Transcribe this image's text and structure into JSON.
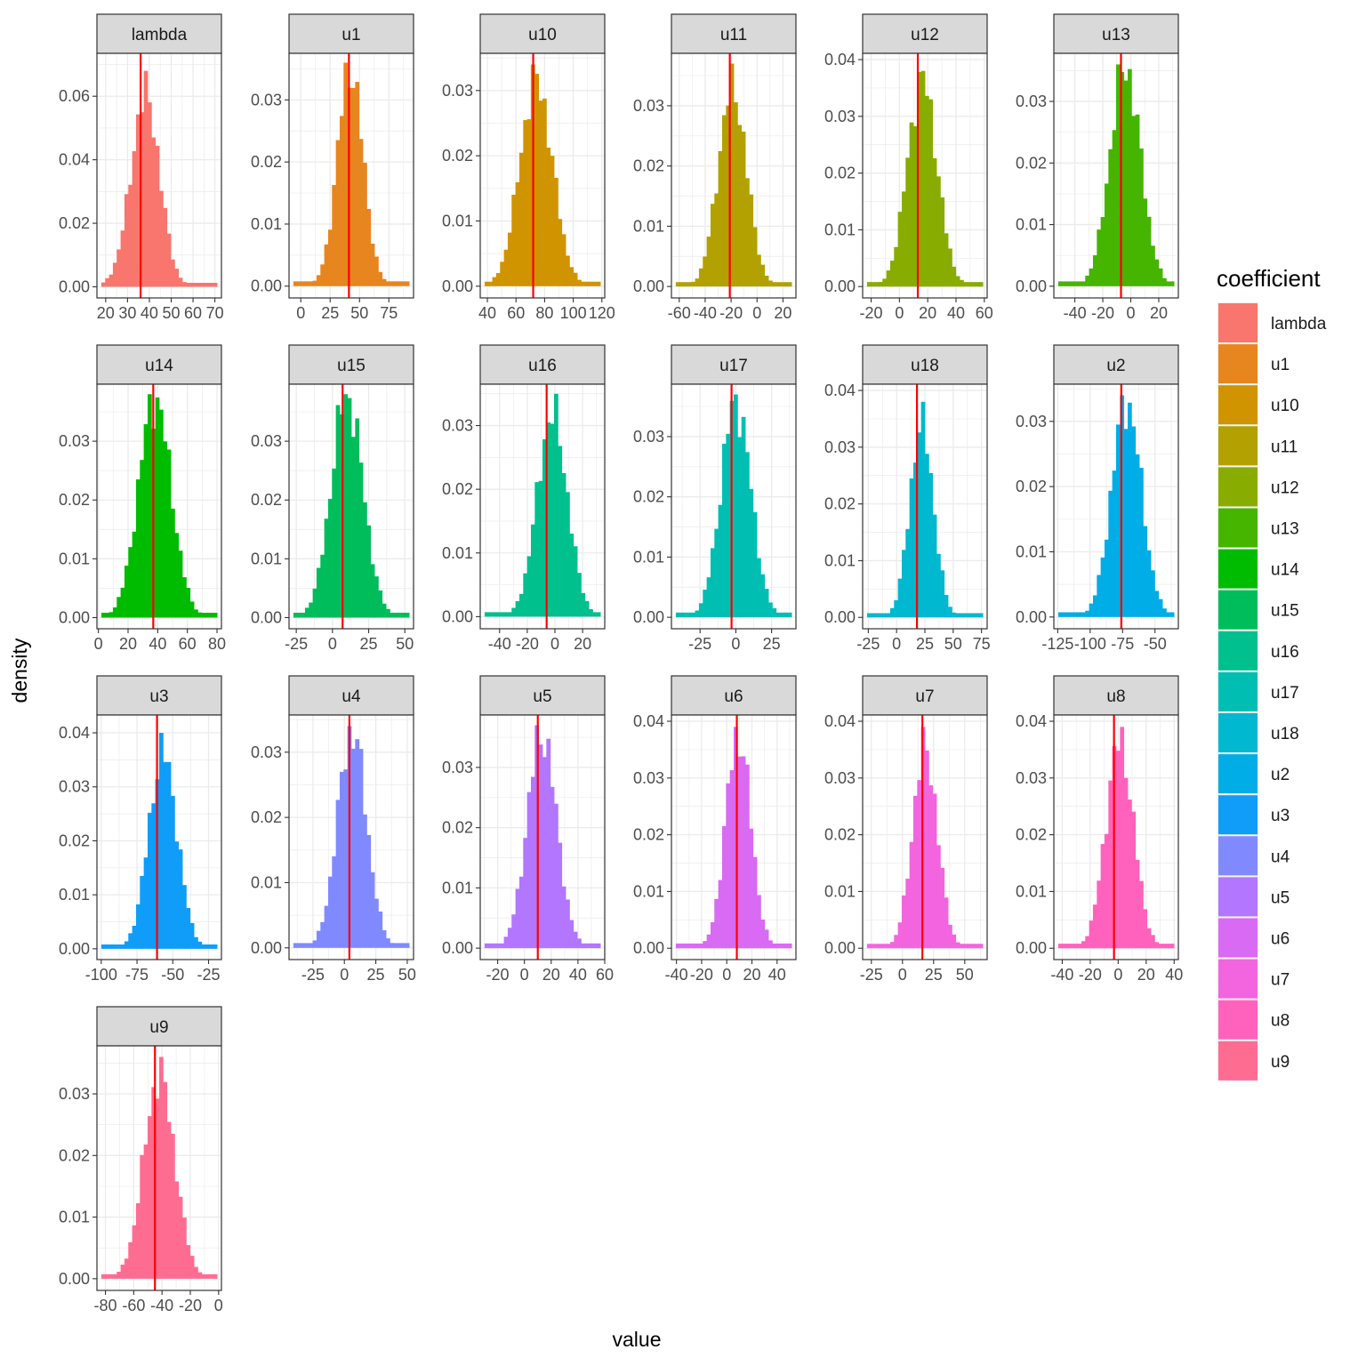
{
  "chart_data": {
    "type": "histogram-facets",
    "x_label": "value",
    "y_label": "density",
    "grid": true,
    "legend": {
      "title": "coefficient",
      "placement": "right",
      "entries": [
        "lambda",
        "u1",
        "u10",
        "u11",
        "u12",
        "u13",
        "u14",
        "u15",
        "u16",
        "u17",
        "u18",
        "u2",
        "u3",
        "u4",
        "u5",
        "u6",
        "u7",
        "u8",
        "u9"
      ]
    },
    "reference_line_color": "#ff0000",
    "facets": [
      {
        "name": "lambda",
        "color": "#F8766D",
        "xlim": [
          16,
          73
        ],
        "ylim": [
          -0.0035,
          0.0735
        ],
        "x_ticks": [
          {
            "v": 20,
            "t": "20"
          },
          {
            "v": 30,
            "t": "30"
          },
          {
            "v": 40,
            "t": "40"
          },
          {
            "v": 50,
            "t": "50"
          },
          {
            "v": 60,
            "t": "60"
          },
          {
            "v": 70,
            "t": "70"
          }
        ],
        "y_ticks": [
          {
            "v": 0,
            "t": "0.00"
          },
          {
            "v": 0.02,
            "t": "0.02"
          },
          {
            "v": 0.04,
            "t": "0.04"
          },
          {
            "v": 0.06,
            "t": "0.06"
          }
        ],
        "mean": 36,
        "sd": 7,
        "skew": 1.2,
        "peak": 0.068,
        "ref": 36
      },
      {
        "name": "u1",
        "color": "#E7851E",
        "xlim": [
          -10,
          96
        ],
        "ylim": [
          -0.0019,
          0.0375
        ],
        "x_ticks": [
          {
            "v": 0,
            "t": "0"
          },
          {
            "v": 25,
            "t": "25"
          },
          {
            "v": 50,
            "t": "50"
          },
          {
            "v": 75,
            "t": "75"
          }
        ],
        "y_ticks": [
          {
            "v": 0,
            "t": "0.00"
          },
          {
            "v": 0.01,
            "t": "0.01"
          },
          {
            "v": 0.02,
            "t": "0.02"
          },
          {
            "v": 0.03,
            "t": "0.03"
          }
        ],
        "mean": 42,
        "sd": 11,
        "skew": 0,
        "peak": 0.036,
        "ref": 41
      },
      {
        "name": "u10",
        "color": "#D09400",
        "xlim": [
          35,
          122
        ],
        "ylim": [
          -0.0018,
          0.0357
        ],
        "x_ticks": [
          {
            "v": 40,
            "t": "40"
          },
          {
            "v": 60,
            "t": "60"
          },
          {
            "v": 80,
            "t": "80"
          },
          {
            "v": 100,
            "t": "100"
          },
          {
            "v": 120,
            "t": "120"
          }
        ],
        "y_ticks": [
          {
            "v": 0,
            "t": "0.00"
          },
          {
            "v": 0.01,
            "t": "0.01"
          },
          {
            "v": 0.02,
            "t": "0.02"
          },
          {
            "v": 0.03,
            "t": "0.03"
          }
        ],
        "mean": 74,
        "sd": 11.5,
        "skew": 0,
        "peak": 0.034,
        "ref": 72
      },
      {
        "name": "u11",
        "color": "#B2A100",
        "xlim": [
          -66,
          30
        ],
        "ylim": [
          -0.0019,
          0.0387
        ],
        "x_ticks": [
          {
            "v": -60,
            "t": "-60"
          },
          {
            "v": -40,
            "t": "-40"
          },
          {
            "v": -20,
            "t": "-20"
          },
          {
            "v": 0,
            "t": "0"
          },
          {
            "v": 20,
            "t": "20"
          }
        ],
        "y_ticks": [
          {
            "v": 0,
            "t": "0.00"
          },
          {
            "v": 0.01,
            "t": "0.01"
          },
          {
            "v": 0.02,
            "t": "0.02"
          },
          {
            "v": 0.03,
            "t": "0.03"
          }
        ],
        "mean": -19,
        "sd": 11,
        "skew": 0,
        "peak": 0.037,
        "ref": -21
      },
      {
        "name": "u12",
        "color": "#89AC00",
        "xlim": [
          -26,
          62
        ],
        "ylim": [
          -0.002,
          0.0411
        ],
        "x_ticks": [
          {
            "v": -20,
            "t": "-20"
          },
          {
            "v": 0,
            "t": "0"
          },
          {
            "v": 20,
            "t": "20"
          },
          {
            "v": 40,
            "t": "40"
          },
          {
            "v": 60,
            "t": "60"
          }
        ],
        "y_ticks": [
          {
            "v": 0,
            "t": "0.00"
          },
          {
            "v": 0.01,
            "t": "0.01"
          },
          {
            "v": 0.02,
            "t": "0.02"
          },
          {
            "v": 0.03,
            "t": "0.03"
          },
          {
            "v": 0.04,
            "t": "0.04"
          }
        ],
        "mean": 16,
        "sd": 10.5,
        "skew": 0,
        "peak": 0.038,
        "ref": 13
      },
      {
        "name": "u13",
        "color": "#45B500",
        "xlim": [
          -55,
          34
        ],
        "ylim": [
          -0.0019,
          0.0378
        ],
        "x_ticks": [
          {
            "v": -40,
            "t": "-40"
          },
          {
            "v": -20,
            "t": "-20"
          },
          {
            "v": 0,
            "t": "0"
          },
          {
            "v": 20,
            "t": "20"
          }
        ],
        "y_ticks": [
          {
            "v": 0,
            "t": "0.00"
          },
          {
            "v": 0.01,
            "t": "0.01"
          },
          {
            "v": 0.02,
            "t": "0.02"
          },
          {
            "v": 0.03,
            "t": "0.03"
          }
        ],
        "mean": -4,
        "sd": 11,
        "skew": 0,
        "peak": 0.036,
        "ref": -7
      },
      {
        "name": "u14",
        "color": "#00BC00",
        "xlim": [
          -1,
          83
        ],
        "ylim": [
          -0.0019,
          0.0397
        ],
        "x_ticks": [
          {
            "v": 0,
            "t": "0"
          },
          {
            "v": 20,
            "t": "20"
          },
          {
            "v": 40,
            "t": "40"
          },
          {
            "v": 60,
            "t": "60"
          },
          {
            "v": 80,
            "t": "80"
          }
        ],
        "y_ticks": [
          {
            "v": 0,
            "t": "0.00"
          },
          {
            "v": 0.01,
            "t": "0.01"
          },
          {
            "v": 0.02,
            "t": "0.02"
          },
          {
            "v": 0.03,
            "t": "0.03"
          }
        ],
        "mean": 38,
        "sd": 11,
        "skew": 0,
        "peak": 0.038,
        "ref": 37
      },
      {
        "name": "u15",
        "color": "#00BD5C",
        "xlim": [
          -30,
          56
        ],
        "ylim": [
          -0.0019,
          0.0397
        ],
        "x_ticks": [
          {
            "v": -25,
            "t": "-25"
          },
          {
            "v": 0,
            "t": "0"
          },
          {
            "v": 25,
            "t": "25"
          },
          {
            "v": 50,
            "t": "50"
          }
        ],
        "y_ticks": [
          {
            "v": 0,
            "t": "0.00"
          },
          {
            "v": 0.01,
            "t": "0.01"
          },
          {
            "v": 0.02,
            "t": "0.02"
          },
          {
            "v": 0.03,
            "t": "0.03"
          }
        ],
        "mean": 10,
        "sd": 11,
        "skew": 0,
        "peak": 0.038,
        "ref": 7
      },
      {
        "name": "u16",
        "color": "#00C08E",
        "xlim": [
          -54,
          36
        ],
        "ylim": [
          -0.0019,
          0.0365
        ],
        "x_ticks": [
          {
            "v": -40,
            "t": "-40"
          },
          {
            "v": -20,
            "t": "-20"
          },
          {
            "v": 0,
            "t": "0"
          },
          {
            "v": 20,
            "t": "20"
          }
        ],
        "y_ticks": [
          {
            "v": 0,
            "t": "0.00"
          },
          {
            "v": 0.01,
            "t": "0.01"
          },
          {
            "v": 0.02,
            "t": "0.02"
          },
          {
            "v": 0.03,
            "t": "0.03"
          }
        ],
        "mean": -2,
        "sd": 11,
        "skew": 0,
        "peak": 0.035,
        "ref": -6
      },
      {
        "name": "u17",
        "color": "#00BFB2",
        "xlim": [
          -45,
          42
        ],
        "ylim": [
          -0.0019,
          0.0387
        ],
        "x_ticks": [
          {
            "v": -25,
            "t": "-25"
          },
          {
            "v": 0,
            "t": "0"
          },
          {
            "v": 25,
            "t": "25"
          }
        ],
        "y_ticks": [
          {
            "v": 0,
            "t": "0.00"
          },
          {
            "v": 0.01,
            "t": "0.01"
          },
          {
            "v": 0.02,
            "t": "0.02"
          },
          {
            "v": 0.03,
            "t": "0.03"
          }
        ],
        "mean": 0,
        "sd": 10.5,
        "skew": 0,
        "peak": 0.037,
        "ref": -3
      },
      {
        "name": "u18",
        "color": "#00B8CF",
        "xlim": [
          -30,
          80
        ],
        "ylim": [
          -0.002,
          0.0411
        ],
        "x_ticks": [
          {
            "v": -25,
            "t": "-25"
          },
          {
            "v": 0,
            "t": "0"
          },
          {
            "v": 25,
            "t": "25"
          },
          {
            "v": 50,
            "t": "50"
          },
          {
            "v": 75,
            "t": "75"
          }
        ],
        "y_ticks": [
          {
            "v": 0,
            "t": "0.00"
          },
          {
            "v": 0.01,
            "t": "0.01"
          },
          {
            "v": 0.02,
            "t": "0.02"
          },
          {
            "v": 0.03,
            "t": "0.03"
          },
          {
            "v": 0.04,
            "t": "0.04"
          }
        ],
        "mean": 22,
        "sd": 10.5,
        "skew": 0,
        "peak": 0.038,
        "ref": 18
      },
      {
        "name": "u2",
        "color": "#00ADE6",
        "xlim": [
          -128,
          -32
        ],
        "ylim": [
          -0.0018,
          0.0357
        ],
        "x_ticks": [
          {
            "v": -125,
            "t": "-125"
          },
          {
            "v": -100,
            "t": "-100"
          },
          {
            "v": -75,
            "t": "-75"
          },
          {
            "v": -50,
            "t": "-50"
          }
        ],
        "y_ticks": [
          {
            "v": 0,
            "t": "0.00"
          },
          {
            "v": 0.01,
            "t": "0.01"
          },
          {
            "v": 0.02,
            "t": "0.02"
          },
          {
            "v": 0.03,
            "t": "0.03"
          }
        ],
        "mean": -72,
        "sd": 11.5,
        "skew": 0,
        "peak": 0.034,
        "ref": -76
      },
      {
        "name": "u3",
        "color": "#0F9DF9",
        "xlim": [
          -103,
          -16
        ],
        "ylim": [
          -0.002,
          0.0433
        ],
        "x_ticks": [
          {
            "v": -100,
            "t": "-100"
          },
          {
            "v": -75,
            "t": "-75"
          },
          {
            "v": -50,
            "t": "-50"
          },
          {
            "v": -25,
            "t": "-25"
          }
        ],
        "y_ticks": [
          {
            "v": 0,
            "t": "0.00"
          },
          {
            "v": 0.01,
            "t": "0.01"
          },
          {
            "v": 0.02,
            "t": "0.02"
          },
          {
            "v": 0.03,
            "t": "0.03"
          },
          {
            "v": 0.04,
            "t": "0.04"
          }
        ],
        "mean": -57,
        "sd": 10,
        "skew": 0,
        "peak": 0.04,
        "ref": -61
      },
      {
        "name": "u4",
        "color": "#8189FF",
        "xlim": [
          -44,
          55
        ],
        "ylim": [
          -0.0018,
          0.0357
        ],
        "x_ticks": [
          {
            "v": -25,
            "t": "-25"
          },
          {
            "v": 0,
            "t": "0"
          },
          {
            "v": 25,
            "t": "25"
          },
          {
            "v": 50,
            "t": "50"
          }
        ],
        "y_ticks": [
          {
            "v": 0,
            "t": "0.00"
          },
          {
            "v": 0.01,
            "t": "0.01"
          },
          {
            "v": 0.02,
            "t": "0.02"
          },
          {
            "v": 0.03,
            "t": "0.03"
          }
        ],
        "mean": 6,
        "sd": 11.5,
        "skew": 0,
        "peak": 0.034,
        "ref": 4
      },
      {
        "name": "u5",
        "color": "#B276FF",
        "xlim": [
          -33,
          60
        ],
        "ylim": [
          -0.0019,
          0.0387
        ],
        "x_ticks": [
          {
            "v": -20,
            "t": "-20"
          },
          {
            "v": 0,
            "t": "0"
          },
          {
            "v": 20,
            "t": "20"
          },
          {
            "v": 40,
            "t": "40"
          },
          {
            "v": 60,
            "t": "60"
          }
        ],
        "y_ticks": [
          {
            "v": 0,
            "t": "0.00"
          },
          {
            "v": 0.01,
            "t": "0.01"
          },
          {
            "v": 0.02,
            "t": "0.02"
          },
          {
            "v": 0.03,
            "t": "0.03"
          }
        ],
        "mean": 13,
        "sd": 11,
        "skew": 0,
        "peak": 0.037,
        "ref": 10
      },
      {
        "name": "u6",
        "color": "#D86AF3",
        "xlim": [
          -44,
          55
        ],
        "ylim": [
          -0.002,
          0.0411
        ],
        "x_ticks": [
          {
            "v": -40,
            "t": "-40"
          },
          {
            "v": -20,
            "t": "-20"
          },
          {
            "v": 0,
            "t": "0"
          },
          {
            "v": 20,
            "t": "20"
          },
          {
            "v": 40,
            "t": "40"
          }
        ],
        "y_ticks": [
          {
            "v": 0,
            "t": "0.00"
          },
          {
            "v": 0.01,
            "t": "0.01"
          },
          {
            "v": 0.02,
            "t": "0.02"
          },
          {
            "v": 0.03,
            "t": "0.03"
          },
          {
            "v": 0.04,
            "t": "0.04"
          }
        ],
        "mean": 9,
        "sd": 10,
        "skew": 0,
        "peak": 0.039,
        "ref": 8
      },
      {
        "name": "u7",
        "color": "#F265DF",
        "xlim": [
          -32,
          68
        ],
        "ylim": [
          -0.002,
          0.0411
        ],
        "x_ticks": [
          {
            "v": -25,
            "t": "-25"
          },
          {
            "v": 0,
            "t": "0"
          },
          {
            "v": 25,
            "t": "25"
          },
          {
            "v": 50,
            "t": "50"
          }
        ],
        "y_ticks": [
          {
            "v": 0,
            "t": "0.00"
          },
          {
            "v": 0.01,
            "t": "0.01"
          },
          {
            "v": 0.02,
            "t": "0.02"
          },
          {
            "v": 0.03,
            "t": "0.03"
          },
          {
            "v": 0.04,
            "t": "0.04"
          }
        ],
        "mean": 18,
        "sd": 10,
        "skew": 0,
        "peak": 0.039,
        "ref": 16
      },
      {
        "name": "u8",
        "color": "#FF62BC",
        "xlim": [
          -46,
          43
        ],
        "ylim": [
          -0.002,
          0.0411
        ],
        "x_ticks": [
          {
            "v": -40,
            "t": "-40"
          },
          {
            "v": -20,
            "t": "-20"
          },
          {
            "v": 0,
            "t": "0"
          },
          {
            "v": 20,
            "t": "20"
          },
          {
            "v": 40,
            "t": "40"
          }
        ],
        "y_ticks": [
          {
            "v": 0,
            "t": "0.00"
          },
          {
            "v": 0.01,
            "t": "0.01"
          },
          {
            "v": 0.02,
            "t": "0.02"
          },
          {
            "v": 0.03,
            "t": "0.03"
          },
          {
            "v": 0.04,
            "t": "0.04"
          }
        ],
        "mean": 1,
        "sd": 10,
        "skew": 0,
        "peak": 0.039,
        "ref": -3
      },
      {
        "name": "u9",
        "color": "#FF6C91",
        "xlim": [
          -86,
          2
        ],
        "ylim": [
          -0.0019,
          0.0378
        ],
        "x_ticks": [
          {
            "v": -80,
            "t": "-80"
          },
          {
            "v": -60,
            "t": "-60"
          },
          {
            "v": -40,
            "t": "-40"
          },
          {
            "v": -20,
            "t": "-20"
          },
          {
            "v": 0,
            "t": "0"
          }
        ],
        "y_ticks": [
          {
            "v": 0,
            "t": "0.00"
          },
          {
            "v": 0.01,
            "t": "0.01"
          },
          {
            "v": 0.02,
            "t": "0.02"
          },
          {
            "v": 0.03,
            "t": "0.03"
          }
        ],
        "mean": -42,
        "sd": 11,
        "skew": 0,
        "peak": 0.036,
        "ref": -45
      }
    ]
  }
}
